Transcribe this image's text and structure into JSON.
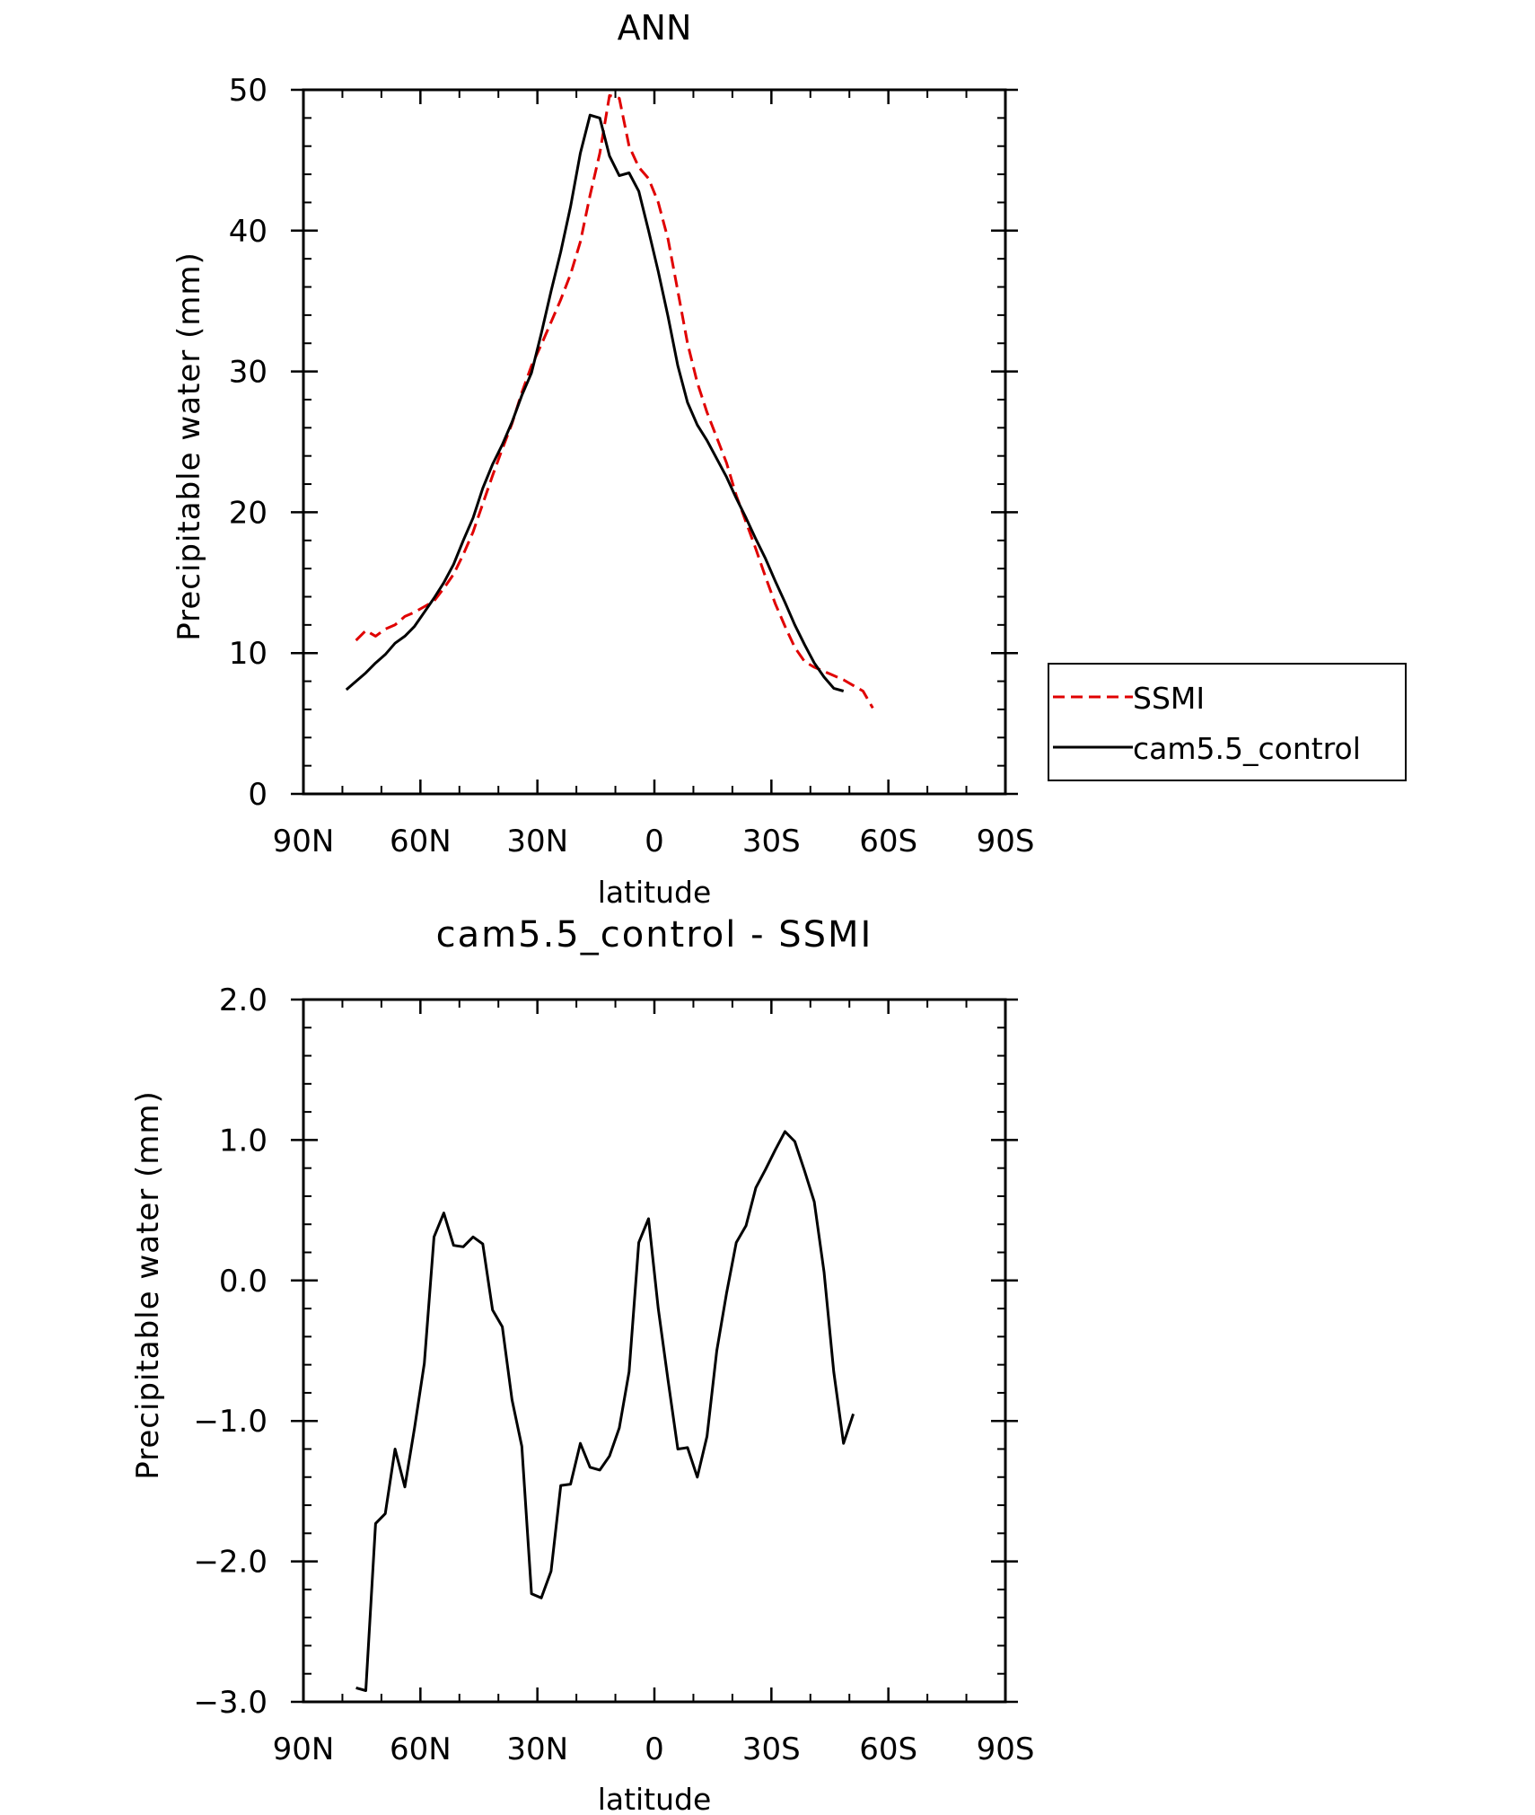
{
  "chart_data": [
    {
      "type": "line",
      "title": "ANN",
      "xlabel": "latitude",
      "ylabel": "Precipitable water (mm)",
      "xlim": [
        90,
        -90
      ],
      "ylim": [
        0,
        50
      ],
      "x_ticks": [
        {
          "value": 90,
          "label": "90N"
        },
        {
          "value": 60,
          "label": "60N"
        },
        {
          "value": 30,
          "label": "30N"
        },
        {
          "value": 0,
          "label": "0"
        },
        {
          "value": -30,
          "label": "30S"
        },
        {
          "value": -60,
          "label": "60S"
        },
        {
          "value": -90,
          "label": "90S"
        }
      ],
      "y_ticks": [
        {
          "value": 0,
          "label": "0"
        },
        {
          "value": 10,
          "label": "10"
        },
        {
          "value": 20,
          "label": "20"
        },
        {
          "value": 30,
          "label": "30"
        },
        {
          "value": 40,
          "label": "40"
        },
        {
          "value": 50,
          "label": "50"
        }
      ],
      "grid": false,
      "legend_position": "right",
      "series": [
        {
          "name": "SSMI",
          "color": "#e00000",
          "dash": "dashed",
          "x": [
            76.5,
            74,
            71.5,
            69,
            66.5,
            64,
            61.5,
            59,
            56.5,
            54,
            51.5,
            49,
            46.5,
            44,
            41.5,
            39,
            36.5,
            34,
            31.5,
            29,
            26.5,
            24,
            21.5,
            19,
            16.5,
            14,
            11.5,
            9,
            6.5,
            4,
            1.5,
            -1,
            -3.5,
            -6,
            -8.5,
            -11,
            -13.5,
            -16,
            -18.5,
            -21,
            -23.5,
            -26,
            -28.5,
            -31,
            -33.5,
            -36,
            -38.5,
            -41,
            -43.5,
            -46,
            -48.5,
            -51,
            -53.5,
            -56,
            -58.5,
            -61,
            -63.5,
            -66,
            -68.5,
            -71,
            -73.5,
            -76
          ],
          "values": [
            10.9,
            11.6,
            11.2,
            11.7,
            12.0,
            12.6,
            12.9,
            13.3,
            13.7,
            14.6,
            15.6,
            17.0,
            18.6,
            20.6,
            22.6,
            24.5,
            26.3,
            28.5,
            30.4,
            31.9,
            33.5,
            35.1,
            36.9,
            39.2,
            42.5,
            45.5,
            49.6,
            49.4,
            46.0,
            44.5,
            43.7,
            42.0,
            39.4,
            35.7,
            32.0,
            29.2,
            27.1,
            25.3,
            23.5,
            21.2,
            19.3,
            17.4,
            15.4,
            13.5,
            11.9,
            10.4,
            9.4,
            9.0,
            8.7,
            8.4,
            8.1,
            7.7,
            7.3,
            6.1,
            null,
            null,
            null,
            null,
            null,
            null,
            null,
            null
          ]
        },
        {
          "name": "cam5.5_control",
          "color": "#000000",
          "dash": "solid",
          "x": [
            79,
            76.5,
            74,
            71.5,
            69,
            66.5,
            64,
            61.5,
            59,
            56.5,
            54,
            51.5,
            49,
            46.5,
            44,
            41.5,
            39,
            36.5,
            34,
            31.5,
            29,
            26.5,
            24,
            21.5,
            19,
            16.5,
            14,
            11.5,
            9,
            6.5,
            4,
            1.5,
            -1,
            -3.5,
            -6,
            -8.5,
            -11,
            -13.5,
            -16,
            -18.5,
            -21,
            -23.5,
            -26,
            -28.5,
            -31,
            -33.5,
            -36,
            -38.5,
            -41,
            -43.5,
            -46,
            -48.5,
            -51,
            -53.5,
            -56,
            -58.5,
            -61,
            -63.5,
            -66
          ],
          "values": [
            7.4,
            8.0,
            8.6,
            9.3,
            9.9,
            10.7,
            11.2,
            11.9,
            12.9,
            13.9,
            15.0,
            16.3,
            18.0,
            19.6,
            21.7,
            23.4,
            24.8,
            26.4,
            28.3,
            29.9,
            32.7,
            35.7,
            38.5,
            41.7,
            45.5,
            48.2,
            48.0,
            45.3,
            43.9,
            44.1,
            42.8,
            40.0,
            37.1,
            33.9,
            30.4,
            27.8,
            26.2,
            25.1,
            23.8,
            22.5,
            21.0,
            19.6,
            18.1,
            16.7,
            15.1,
            13.6,
            12.0,
            10.6,
            9.3,
            8.3,
            7.5,
            7.3,
            null,
            null,
            null,
            null,
            null,
            null,
            null
          ]
        }
      ]
    },
    {
      "type": "line",
      "title": "cam5.5_control - SSMI",
      "xlabel": "latitude",
      "ylabel": "Precipitable water (mm)",
      "xlim": [
        90,
        -90
      ],
      "ylim": [
        -3.0,
        2.0
      ],
      "x_ticks": [
        {
          "value": 90,
          "label": "90N"
        },
        {
          "value": 60,
          "label": "60N"
        },
        {
          "value": 30,
          "label": "30N"
        },
        {
          "value": 0,
          "label": "0"
        },
        {
          "value": -30,
          "label": "30S"
        },
        {
          "value": -60,
          "label": "60S"
        },
        {
          "value": -90,
          "label": "90S"
        }
      ],
      "y_ticks": [
        {
          "value": -3.0,
          "label": "−3.0"
        },
        {
          "value": -2.0,
          "label": "−2.0"
        },
        {
          "value": -1.0,
          "label": "−1.0"
        },
        {
          "value": 0.0,
          "label": "0.0"
        },
        {
          "value": 1.0,
          "label": "1.0"
        },
        {
          "value": 2.0,
          "label": "2.0"
        }
      ],
      "grid": false,
      "series": [
        {
          "color": "#000000",
          "dash": "solid",
          "x": [
            76.5,
            74,
            71.5,
            69,
            66.5,
            64,
            61.5,
            59,
            56.5,
            54,
            51.5,
            49,
            46.5,
            44,
            41.5,
            39,
            36.5,
            34,
            31.5,
            29,
            26.5,
            24,
            21.5,
            19,
            16.5,
            14,
            11.5,
            9,
            6.5,
            4,
            1.5,
            -1,
            -3.5,
            -6,
            -8.5,
            -11,
            -13.5,
            -16,
            -18.5,
            -21,
            -23.5,
            -26,
            -28.5,
            -31,
            -33.5,
            -36,
            -38.5,
            -41,
            -43.5,
            -46,
            -48.5,
            -51,
            -53.5,
            -56,
            -58.5,
            -61,
            -63.5,
            -66
          ],
          "values": [
            -2.9,
            -2.92,
            -1.73,
            -1.66,
            -1.2,
            -1.47,
            -1.05,
            -0.59,
            0.31,
            0.48,
            0.25,
            0.24,
            0.31,
            0.26,
            -0.21,
            -0.33,
            -0.85,
            -1.18,
            -2.23,
            -2.26,
            -2.07,
            -1.46,
            -1.45,
            -1.16,
            -1.33,
            -1.35,
            -1.25,
            -1.05,
            -0.65,
            0.27,
            0.44,
            -0.2,
            -0.71,
            -1.2,
            -1.19,
            -1.4,
            -1.11,
            -0.5,
            -0.09,
            0.27,
            0.39,
            0.66,
            0.79,
            0.93,
            1.06,
            0.99,
            0.78,
            0.56,
            0.06,
            -0.65,
            -1.16,
            -0.95,
            null,
            null,
            null,
            null,
            null,
            null
          ]
        }
      ]
    }
  ]
}
